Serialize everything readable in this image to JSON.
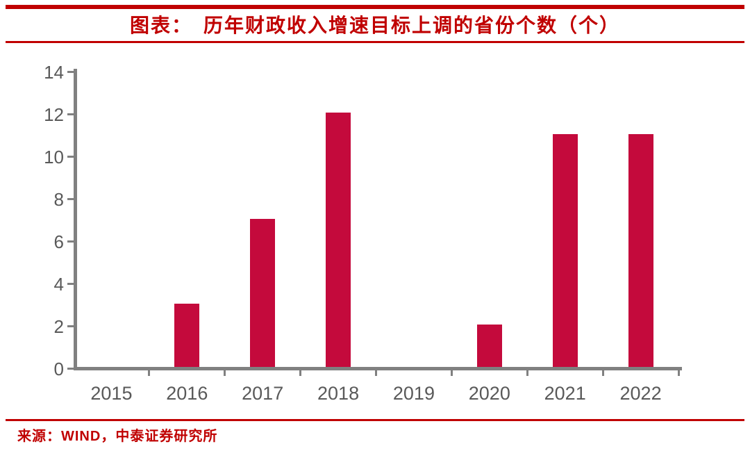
{
  "header": {
    "prefix": "图表：",
    "title": "历年财政收入增速目标上调的省份个数（个）"
  },
  "footer": {
    "source": "来源：WIND，中泰证券研究所"
  },
  "colors": {
    "accent_red": "#C00000",
    "bar_red": "#C40A3C",
    "axis_gray": "#808080",
    "tick_label_gray": "#595959"
  },
  "chart_data": {
    "type": "bar",
    "title": "图表：历年财政收入增速目标上调的省份个数（个）",
    "categories": [
      "2015",
      "2016",
      "2017",
      "2018",
      "2019",
      "2020",
      "2021",
      "2022"
    ],
    "values": [
      0,
      3,
      7,
      12,
      0,
      2,
      11,
      11
    ],
    "xlabel": "",
    "ylabel": "",
    "ylim": [
      0,
      14
    ],
    "ytick_step": 2,
    "yticks": [
      0,
      2,
      4,
      6,
      8,
      10,
      12,
      14
    ],
    "grid": false,
    "legend": false,
    "source": "来源：WIND，中泰证券研究所"
  }
}
